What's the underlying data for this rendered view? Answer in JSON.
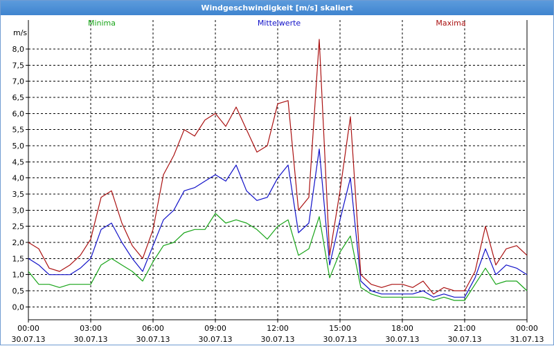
{
  "window": {
    "title": "Windgeschwindigkeit [m/s] skaliert"
  },
  "colors": {
    "min": "#18a418",
    "mean": "#1010c8",
    "max": "#aa1010",
    "grid": "#000000"
  },
  "chart_data": {
    "type": "line",
    "title": "Windgeschwindigkeit [m/s] skaliert",
    "ylabel": "m/s",
    "xlabel": "",
    "ylim": [
      -0.4,
      8.9
    ],
    "xlim_hours": [
      0,
      24
    ],
    "grid": true,
    "legend_placement": "top",
    "y_ticks": [
      "0,0",
      "0,5",
      "1,0",
      "1,5",
      "2,0",
      "2,5",
      "3,0",
      "3,5",
      "4,0",
      "4,5",
      "5,0",
      "5,5",
      "6,0",
      "6,5",
      "7,0",
      "7,5",
      "8,0"
    ],
    "x_ticks": [
      {
        "time": "00:00",
        "date": "30.07.13"
      },
      {
        "time": "03:00",
        "date": "30.07.13"
      },
      {
        "time": "06:00",
        "date": "30.07.13"
      },
      {
        "time": "09:00",
        "date": "30.07.13"
      },
      {
        "time": "12:00",
        "date": "30.07.13"
      },
      {
        "time": "15:00",
        "date": "30.07.13"
      },
      {
        "time": "18:00",
        "date": "30.07.13"
      },
      {
        "time": "21:00",
        "date": "30.07.13"
      },
      {
        "time": "00:00",
        "date": "31.07.13"
      }
    ],
    "x_hours": [
      0,
      0.5,
      1,
      1.5,
      2,
      2.5,
      3,
      3.5,
      4,
      4.5,
      5,
      5.5,
      6,
      6.5,
      7,
      7.5,
      8,
      8.5,
      9,
      9.5,
      10,
      10.5,
      11,
      11.5,
      12,
      12.5,
      13,
      13.5,
      14,
      14.5,
      15,
      15.5,
      16,
      16.5,
      17,
      17.5,
      18,
      18.5,
      19,
      19.5,
      20,
      20.5,
      21,
      21.5,
      22,
      22.5,
      23,
      23.5,
      24
    ],
    "series": [
      {
        "name": "Minima",
        "color": "#18a418",
        "values": [
          1.1,
          0.7,
          0.7,
          0.6,
          0.7,
          0.7,
          0.7,
          1.3,
          1.5,
          1.3,
          1.1,
          0.8,
          1.4,
          1.9,
          2.0,
          2.3,
          2.4,
          2.4,
          2.9,
          2.6,
          2.7,
          2.6,
          2.4,
          2.1,
          2.5,
          2.7,
          1.6,
          1.8,
          2.8,
          0.9,
          1.7,
          2.2,
          0.6,
          0.4,
          0.3,
          0.3,
          0.3,
          0.3,
          0.3,
          0.2,
          0.3,
          0.2,
          0.2,
          0.7,
          1.2,
          0.7,
          0.8,
          0.8,
          0.5
        ]
      },
      {
        "name": "Mittelwerte",
        "color": "#1010c8",
        "values": [
          1.5,
          1.3,
          1.0,
          1.0,
          1.0,
          1.2,
          1.5,
          2.4,
          2.6,
          2.0,
          1.5,
          1.1,
          1.9,
          2.7,
          3.0,
          3.6,
          3.7,
          3.9,
          4.1,
          3.9,
          4.4,
          3.6,
          3.3,
          3.4,
          4.0,
          4.4,
          2.3,
          2.6,
          4.9,
          1.3,
          2.7,
          4.0,
          0.8,
          0.5,
          0.4,
          0.4,
          0.4,
          0.4,
          0.5,
          0.3,
          0.4,
          0.3,
          0.3,
          0.9,
          1.8,
          1.0,
          1.3,
          1.2,
          1.0
        ]
      },
      {
        "name": "Maxima",
        "color": "#aa1010",
        "values": [
          2.0,
          1.8,
          1.2,
          1.1,
          1.3,
          1.6,
          2.1,
          3.4,
          3.6,
          2.6,
          1.9,
          1.5,
          2.4,
          4.1,
          4.7,
          5.5,
          5.3,
          5.8,
          6.0,
          5.6,
          6.2,
          5.5,
          4.8,
          5.0,
          6.3,
          6.4,
          3.0,
          3.4,
          8.3,
          1.6,
          3.6,
          5.9,
          1.0,
          0.7,
          0.6,
          0.7,
          0.7,
          0.6,
          0.8,
          0.4,
          0.6,
          0.5,
          0.5,
          1.1,
          2.5,
          1.3,
          1.8,
          1.9,
          1.6
        ]
      }
    ]
  }
}
